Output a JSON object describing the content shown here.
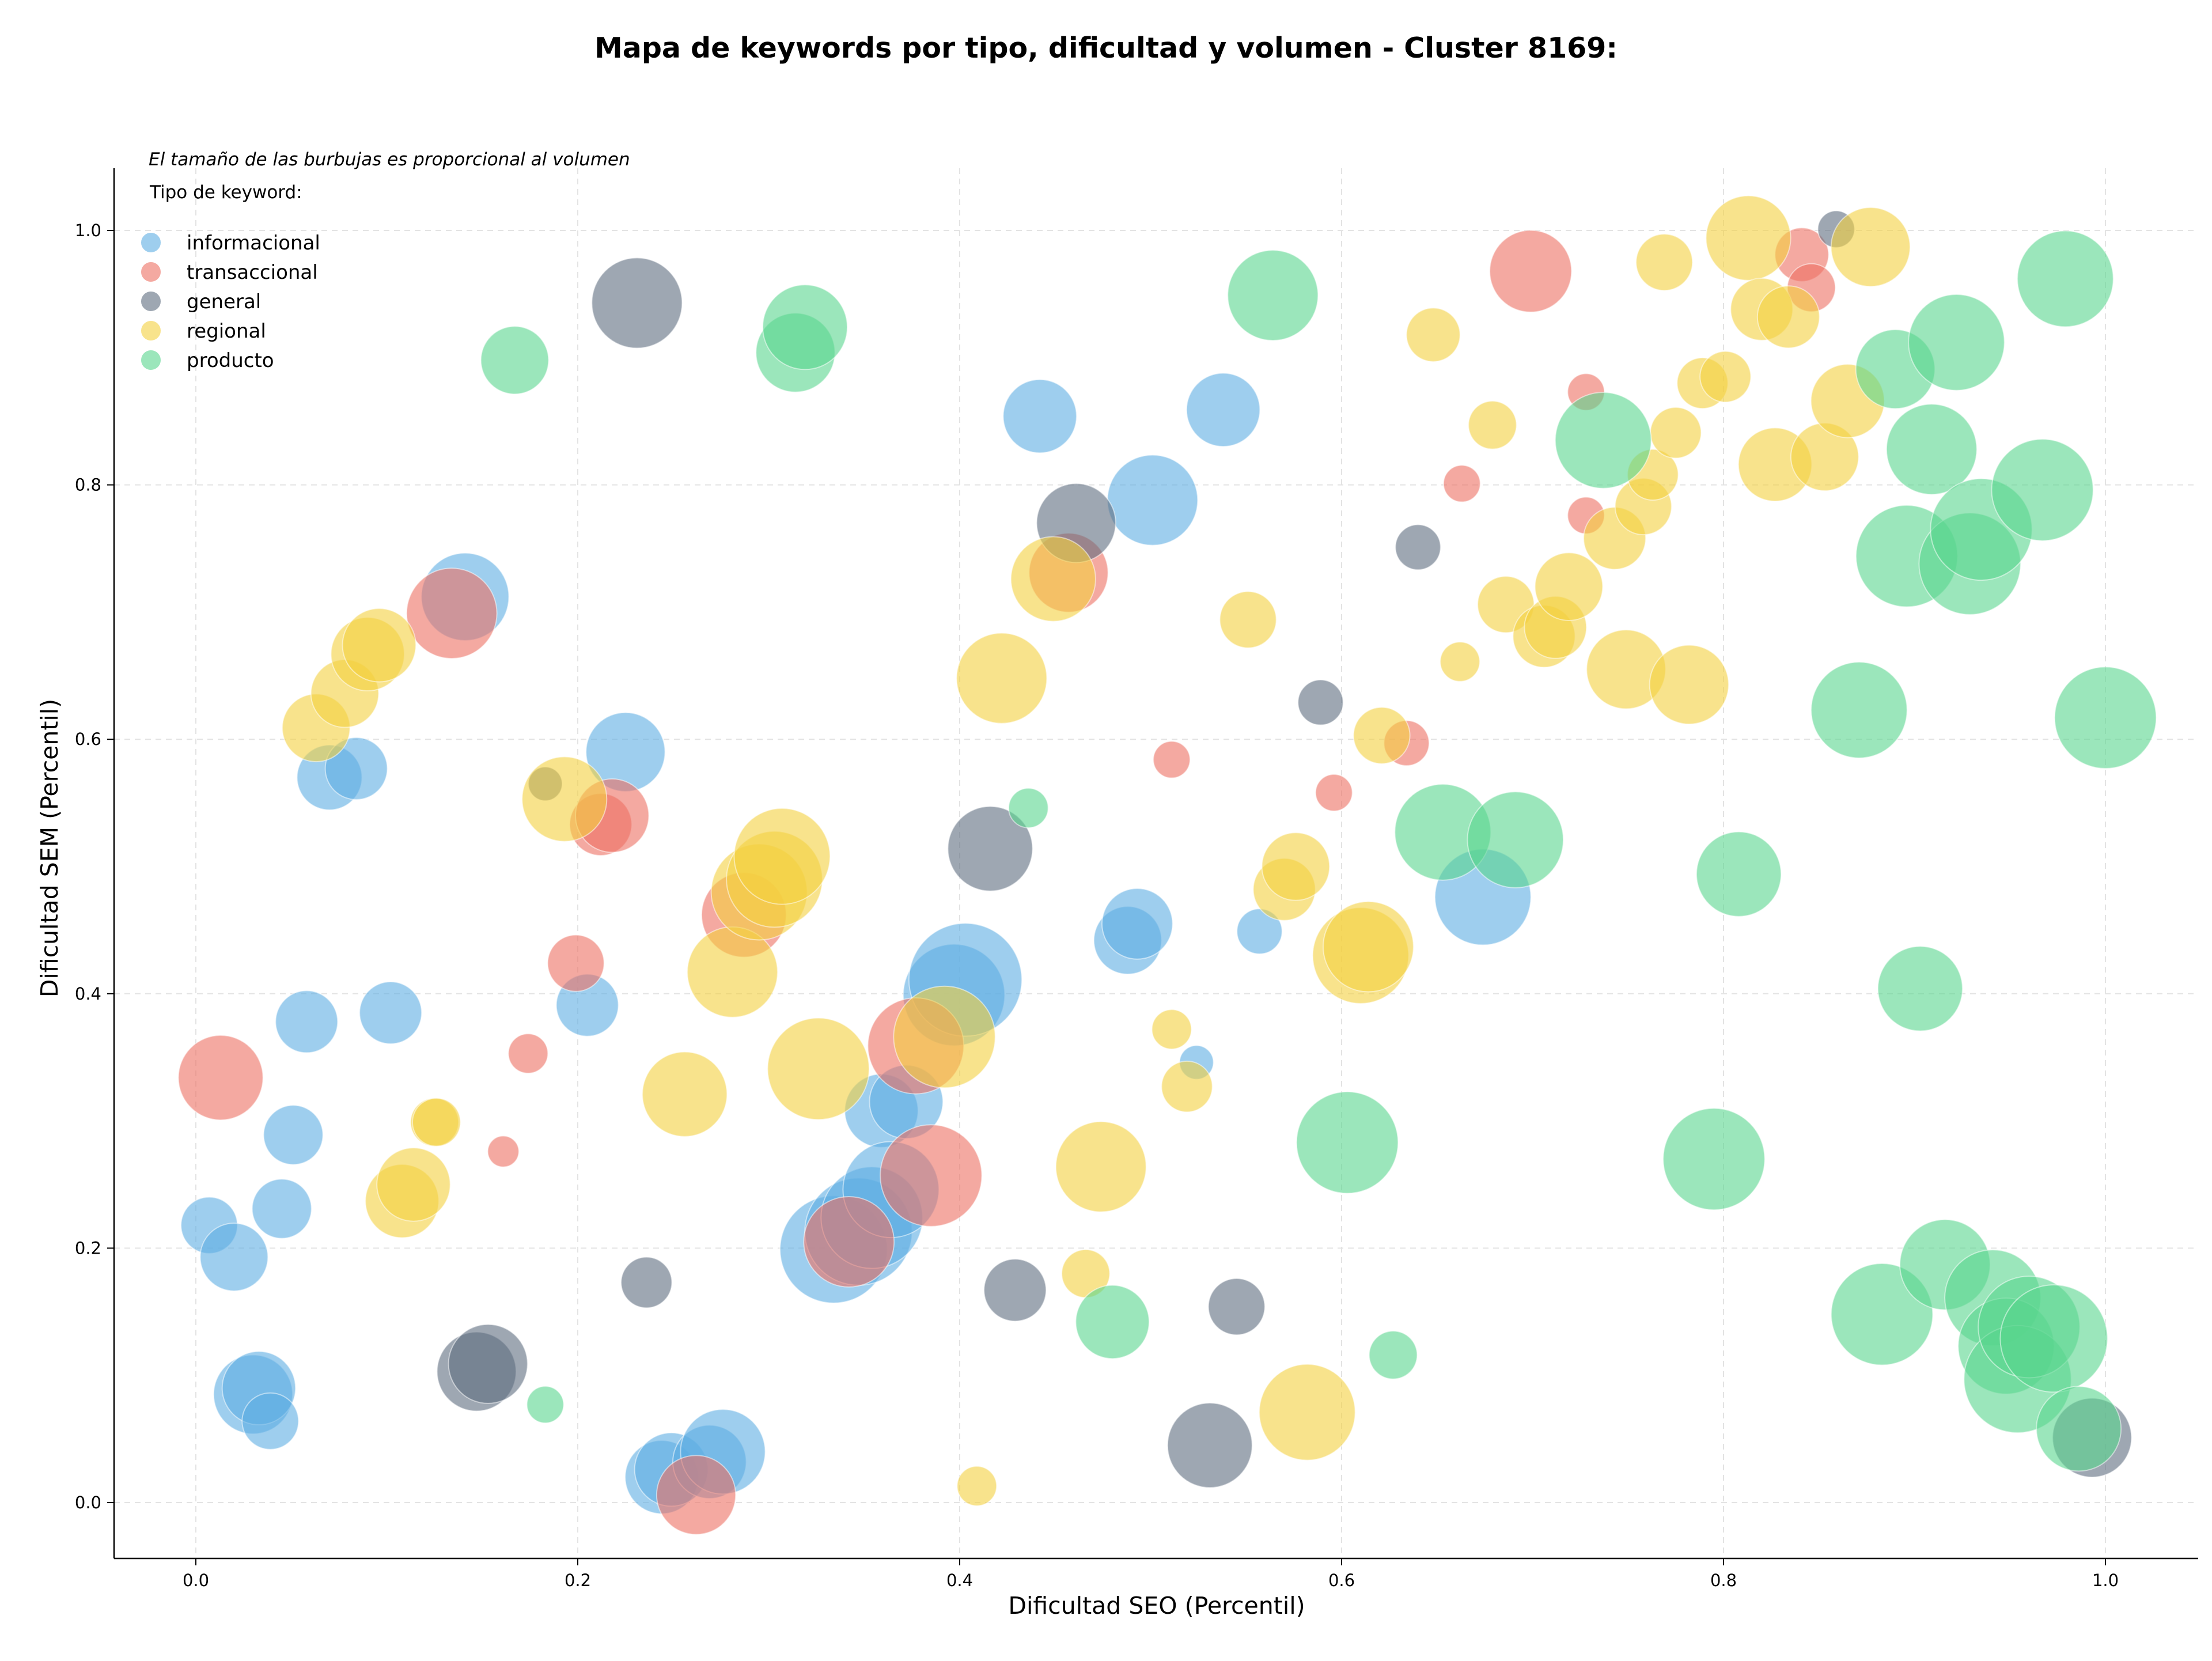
{
  "chart_data": {
    "type": "scatter",
    "title": "Mapa de keywords por tipo, dificultad y volumen - Cluster 8169:",
    "xlabel": "Dificultad SEO (Percentil)",
    "ylabel": "Dificultad SEM (Percentil)",
    "xlim": [
      -0.04,
      1.05
    ],
    "ylim": [
      -0.04,
      1.05
    ],
    "x_ticks": [
      "0.0",
      "0.2",
      "0.4",
      "0.6",
      "0.8",
      "1.0"
    ],
    "y_ticks": [
      "0.0",
      "0.2",
      "0.4",
      "0.6",
      "0.8",
      "1.0"
    ],
    "grid": true,
    "legend_position": "top-left",
    "note": "El tamaño de las burbujas es proporcional al volumen",
    "legend_title": "Tipo de keyword:",
    "series": [
      {
        "name": "informacional",
        "color": "#5dade2",
        "points": [
          [
            0.007,
            0.218,
            20
          ],
          [
            0.02,
            0.193,
            24
          ],
          [
            0.03,
            0.085,
            28
          ],
          [
            0.033,
            0.09,
            26
          ],
          [
            0.039,
            0.064,
            20
          ],
          [
            0.045,
            0.231,
            21
          ],
          [
            0.051,
            0.289,
            21
          ],
          [
            0.058,
            0.378,
            22
          ],
          [
            0.07,
            0.57,
            23
          ],
          [
            0.084,
            0.577,
            22
          ],
          [
            0.102,
            0.385,
            22
          ],
          [
            0.141,
            0.712,
            31
          ],
          [
            0.205,
            0.391,
            22
          ],
          [
            0.225,
            0.59,
            28
          ],
          [
            0.244,
            0.02,
            26
          ],
          [
            0.249,
            0.026,
            26
          ],
          [
            0.269,
            0.032,
            26
          ],
          [
            0.276,
            0.04,
            30
          ],
          [
            0.334,
            0.199,
            38
          ],
          [
            0.347,
            0.213,
            38
          ],
          [
            0.354,
            0.224,
            36
          ],
          [
            0.359,
            0.308,
            26
          ],
          [
            0.364,
            0.246,
            34
          ],
          [
            0.372,
            0.315,
            26
          ],
          [
            0.397,
            0.399,
            36
          ],
          [
            0.403,
            0.411,
            40
          ],
          [
            0.442,
            0.854,
            26
          ],
          [
            0.488,
            0.442,
            24
          ],
          [
            0.493,
            0.455,
            25
          ],
          [
            0.501,
            0.788,
            32
          ],
          [
            0.524,
            0.346,
            12
          ],
          [
            0.538,
            0.859,
            26
          ],
          [
            0.557,
            0.449,
            16
          ],
          [
            0.674,
            0.476,
            34
          ]
        ]
      },
      {
        "name": "transaccional",
        "color": "#ec7063",
        "points": [
          [
            0.013,
            0.334,
            30
          ],
          [
            0.134,
            0.699,
            32
          ],
          [
            0.161,
            0.276,
            11
          ],
          [
            0.174,
            0.353,
            14
          ],
          [
            0.199,
            0.424,
            20
          ],
          [
            0.212,
            0.533,
            22
          ],
          [
            0.218,
            0.54,
            26
          ],
          [
            0.287,
            0.462,
            30
          ],
          [
            0.342,
            0.205,
            32
          ],
          [
            0.377,
            0.359,
            34
          ],
          [
            0.385,
            0.257,
            36
          ],
          [
            0.457,
            0.731,
            28
          ],
          [
            0.262,
            0.006,
            28
          ],
          [
            0.511,
            0.584,
            13
          ],
          [
            0.596,
            0.558,
            13
          ],
          [
            0.634,
            0.597,
            16
          ],
          [
            0.663,
            0.801,
            13
          ],
          [
            0.699,
            0.968,
            29
          ],
          [
            0.728,
            0.873,
            13
          ],
          [
            0.728,
            0.776,
            13
          ],
          [
            0.841,
            0.981,
            19
          ],
          [
            0.846,
            0.955,
            17
          ]
        ]
      },
      {
        "name": "general",
        "color": "#5d6d7e",
        "points": [
          [
            0.147,
            0.103,
            28
          ],
          [
            0.153,
            0.109,
            28
          ],
          [
            0.183,
            0.565,
            12
          ],
          [
            0.236,
            0.173,
            18
          ],
          [
            0.231,
            0.943,
            32
          ],
          [
            0.416,
            0.514,
            30
          ],
          [
            0.429,
            0.167,
            22
          ],
          [
            0.461,
            0.77,
            28
          ],
          [
            0.531,
            0.045,
            30
          ],
          [
            0.545,
            0.154,
            20
          ],
          [
            0.589,
            0.629,
            16
          ],
          [
            0.64,
            0.751,
            16
          ],
          [
            0.859,
            1.001,
            13
          ],
          [
            0.993,
            0.051,
            28
          ]
        ]
      },
      {
        "name": "regional",
        "color": "#f4d03f",
        "points": [
          [
            0.063,
            0.609,
            24
          ],
          [
            0.078,
            0.636,
            24
          ],
          [
            0.09,
            0.667,
            26
          ],
          [
            0.096,
            0.674,
            26
          ],
          [
            0.108,
            0.237,
            26
          ],
          [
            0.114,
            0.25,
            26
          ],
          [
            0.125,
            0.299,
            17
          ],
          [
            0.126,
            0.299,
            17
          ],
          [
            0.193,
            0.553,
            30
          ],
          [
            0.256,
            0.321,
            30
          ],
          [
            0.281,
            0.417,
            32
          ],
          [
            0.295,
            0.48,
            34
          ],
          [
            0.303,
            0.49,
            34
          ],
          [
            0.307,
            0.508,
            34
          ],
          [
            0.326,
            0.341,
            36
          ],
          [
            0.392,
            0.366,
            36
          ],
          [
            0.422,
            0.648,
            32
          ],
          [
            0.449,
            0.726,
            30
          ],
          [
            0.474,
            0.264,
            32
          ],
          [
            0.466,
            0.18,
            17
          ],
          [
            0.409,
            0.013,
            14
          ],
          [
            0.511,
            0.372,
            14
          ],
          [
            0.519,
            0.327,
            18
          ],
          [
            0.551,
            0.694,
            20
          ],
          [
            0.57,
            0.482,
            22
          ],
          [
            0.576,
            0.5,
            24
          ],
          [
            0.582,
            0.071,
            34
          ],
          [
            0.61,
            0.43,
            34
          ],
          [
            0.614,
            0.437,
            32
          ],
          [
            0.621,
            0.603,
            20
          ],
          [
            0.648,
            0.918,
            19
          ],
          [
            0.662,
            0.661,
            14
          ],
          [
            0.679,
            0.847,
            17
          ],
          [
            0.686,
            0.706,
            20
          ],
          [
            0.706,
            0.681,
            22
          ],
          [
            0.712,
            0.688,
            22
          ],
          [
            0.719,
            0.72,
            24
          ],
          [
            0.743,
            0.758,
            22
          ],
          [
            0.749,
            0.655,
            28
          ],
          [
            0.758,
            0.783,
            20
          ],
          [
            0.763,
            0.808,
            18
          ],
          [
            0.769,
            0.975,
            20
          ],
          [
            0.775,
            0.841,
            18
          ],
          [
            0.782,
            0.643,
            28
          ],
          [
            0.789,
            0.88,
            18
          ],
          [
            0.801,
            0.885,
            18
          ],
          [
            0.813,
            0.994,
            30
          ],
          [
            0.82,
            0.938,
            22
          ],
          [
            0.827,
            0.816,
            26
          ],
          [
            0.834,
            0.932,
            22
          ],
          [
            0.853,
            0.822,
            24
          ],
          [
            0.865,
            0.866,
            26
          ],
          [
            0.877,
            0.987,
            28
          ]
        ]
      },
      {
        "name": "producto",
        "color": "#58d68d",
        "points": [
          [
            0.167,
            0.898,
            24
          ],
          [
            0.183,
            0.077,
            13
          ],
          [
            0.314,
            0.904,
            28
          ],
          [
            0.319,
            0.924,
            30
          ],
          [
            0.436,
            0.546,
            14
          ],
          [
            0.48,
            0.142,
            26
          ],
          [
            0.564,
            0.949,
            32
          ],
          [
            0.603,
            0.283,
            36
          ],
          [
            0.627,
            0.116,
            17
          ],
          [
            0.653,
            0.527,
            34
          ],
          [
            0.691,
            0.521,
            34
          ],
          [
            0.737,
            0.835,
            34
          ],
          [
            0.795,
            0.27,
            36
          ],
          [
            0.808,
            0.494,
            30
          ],
          [
            0.871,
            0.623,
            34
          ],
          [
            0.883,
            0.148,
            36
          ],
          [
            0.89,
            0.891,
            28
          ],
          [
            0.896,
            0.744,
            36
          ],
          [
            0.903,
            0.404,
            30
          ],
          [
            0.909,
            0.828,
            32
          ],
          [
            0.916,
            0.187,
            32
          ],
          [
            0.922,
            0.912,
            34
          ],
          [
            0.929,
            0.738,
            36
          ],
          [
            0.935,
            0.765,
            36
          ],
          [
            0.941,
            0.161,
            34
          ],
          [
            0.948,
            0.123,
            34
          ],
          [
            0.954,
            0.097,
            38
          ],
          [
            0.96,
            0.138,
            36
          ],
          [
            0.967,
            0.796,
            36
          ],
          [
            0.973,
            0.129,
            38
          ],
          [
            0.979,
            0.962,
            34
          ],
          [
            0.986,
            0.058,
            30
          ],
          [
            1.0,
            0.617,
            36
          ]
        ]
      }
    ]
  }
}
